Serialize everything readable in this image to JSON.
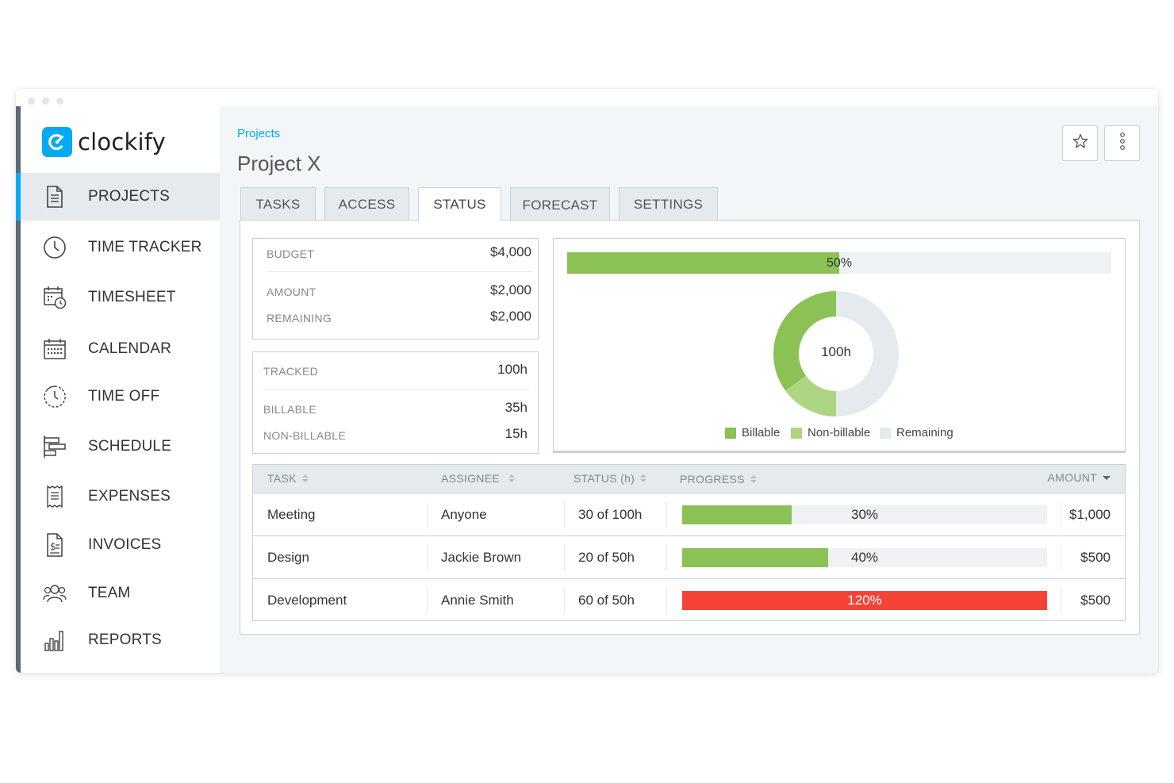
{
  "app": {
    "name": "clockify"
  },
  "sidebar": {
    "items": [
      {
        "label": "PROJECTS",
        "icon": "document-icon",
        "active": true
      },
      {
        "label": "TIME TRACKER",
        "icon": "clock-icon",
        "active": false
      },
      {
        "label": "TIMESHEET",
        "icon": "timesheet-icon",
        "active": false
      },
      {
        "label": "CALENDAR",
        "icon": "calendar-icon",
        "active": false
      },
      {
        "label": "TIME OFF",
        "icon": "time-off-icon",
        "active": false
      },
      {
        "label": "SCHEDULE",
        "icon": "schedule-icon",
        "active": false
      },
      {
        "label": "EXPENSES",
        "icon": "receipt-icon",
        "active": false
      },
      {
        "label": "INVOICES",
        "icon": "invoice-icon",
        "active": false
      },
      {
        "label": "TEAM",
        "icon": "team-icon",
        "active": false
      },
      {
        "label": "REPORTS",
        "icon": "bar-chart-icon",
        "active": false
      }
    ]
  },
  "header": {
    "breadcrumb": "Projects",
    "title": "Project X",
    "actions": [
      {
        "icon": "star-icon"
      },
      {
        "icon": "more-vertical-icon"
      }
    ]
  },
  "tabs": [
    {
      "label": "TASKS",
      "active": false
    },
    {
      "label": "ACCESS",
      "active": false
    },
    {
      "label": "STATUS",
      "active": true
    },
    {
      "label": "FORECAST",
      "active": false
    },
    {
      "label": "SETTINGS",
      "active": false
    }
  ],
  "budget": {
    "budget_label": "BUDGET",
    "budget_value": "$4,000",
    "amount_label": "AMOUNT",
    "amount_value": "$2,000",
    "remaining_label": "REMAINING",
    "remaining_value": "$2,000"
  },
  "tracked": {
    "tracked_label": "TRACKED",
    "tracked_value": "100h",
    "billable_label": "BILLABLE",
    "billable_value": "35h",
    "nonbillable_label": "NON-BILLABLE",
    "nonbillable_value": "15h"
  },
  "overview": {
    "budget_progress": 0.5,
    "budget_progress_label": "50%",
    "donut_center_label": "100h",
    "legend": [
      {
        "label": "Billable",
        "color": "#8bc155"
      },
      {
        "label": "Non-billable",
        "color": "#aed581"
      },
      {
        "label": "Remaining",
        "color": "#e4eaee"
      }
    ]
  },
  "chart_data": {
    "type": "pie",
    "categories": [
      "Billable",
      "Non-billable",
      "Remaining"
    ],
    "values": [
      35,
      15,
      50
    ],
    "colors": [
      "#8bc155",
      "#aed581",
      "#e4eaee"
    ],
    "center_label": "100h",
    "legend_position": "bottom"
  },
  "table": {
    "columns": [
      {
        "label": "TASK"
      },
      {
        "label": "ASSIGNEE"
      },
      {
        "label": "STATUS (h)"
      },
      {
        "label": "PROGRESS"
      },
      {
        "label": "AMOUNT"
      }
    ],
    "rows": [
      {
        "task": "Meeting",
        "assignee": "Anyone",
        "status": "30 of 100h",
        "progress": 0.3,
        "progress_label": "30%",
        "amount": "$1,000",
        "color": "#8bc155"
      },
      {
        "task": "Design",
        "assignee": "Jackie Brown",
        "status": "20 of 50h",
        "progress": 0.4,
        "progress_label": "40%",
        "amount": "$500",
        "color": "#8bc155"
      },
      {
        "task": "Development",
        "assignee": "Annie Smith",
        "status": "60 of 50h",
        "progress": 1.2,
        "progress_label": "120%",
        "amount": "$500",
        "color": "#f44336"
      }
    ]
  },
  "colors": {
    "accent": "#03a9f4",
    "billable": "#8bc155",
    "nonbillable": "#aed581",
    "over_budget": "#f44336",
    "border": "#c6d2d9"
  }
}
